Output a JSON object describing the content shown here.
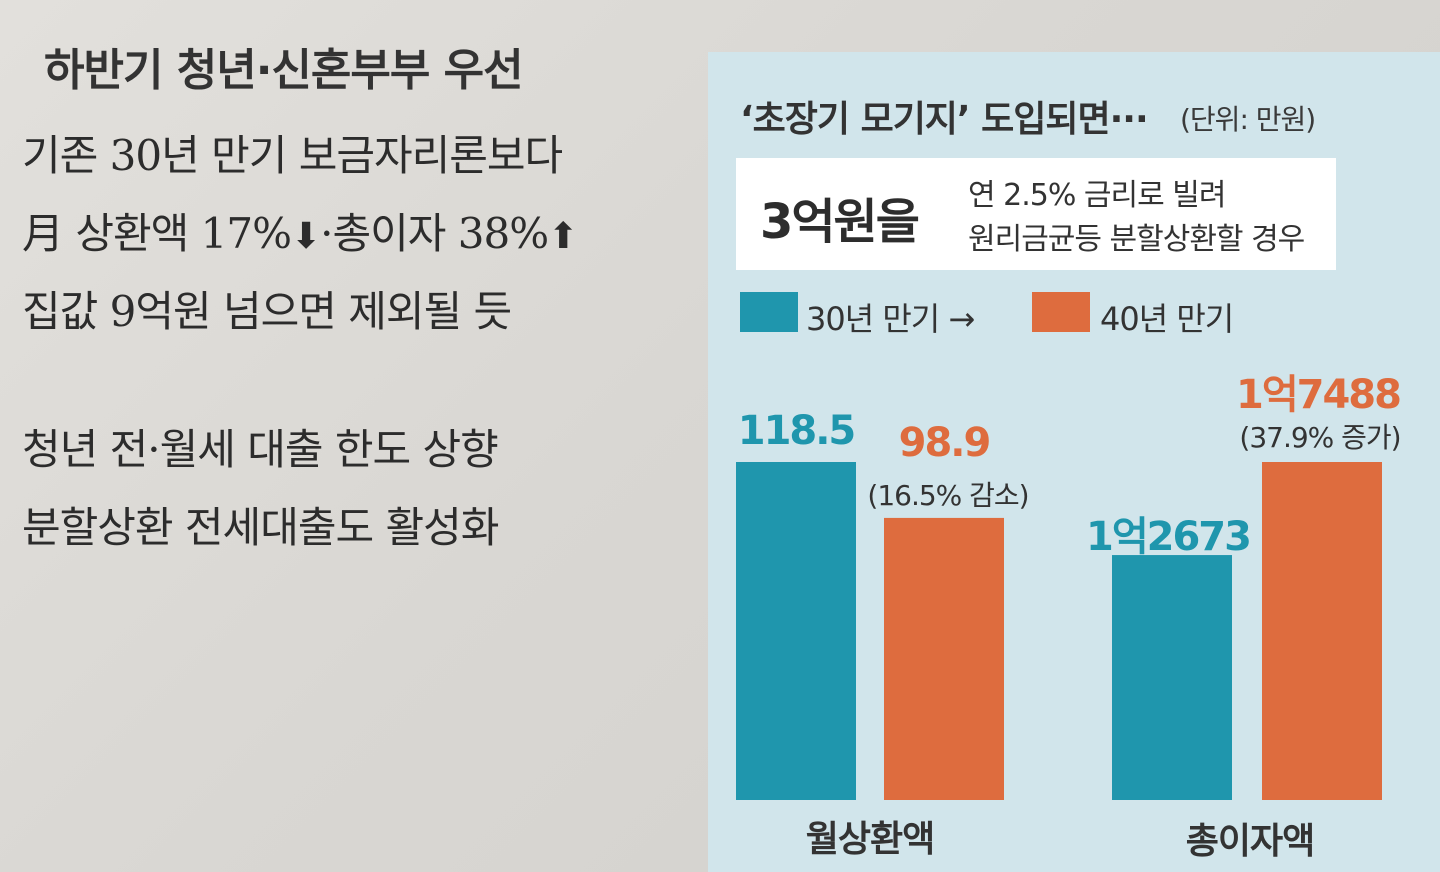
{
  "article": {
    "headline": "하반기 청년·신혼부부 우선",
    "lines": [
      "기존 30년 만기 보금자리론보다",
      "月 상환액 17%",
      "·총이자 38%",
      "집값 9억원 넘으면 제외될 듯",
      "청년 전·월세 대출 한도 상향",
      "분할상환 전세대출도 활성화"
    ],
    "arrow_down": "⬇",
    "arrow_up": "⬆"
  },
  "colors": {
    "series_30": "#1f96ad",
    "series_40": "#de6c3e",
    "panel_bg": "#d1e5eb"
  },
  "chart_data": {
    "type": "bar",
    "title": "‘초장기 모기지’ 도입되면···",
    "unit": "(단위: 만원)",
    "condition": {
      "amount": "3억원을",
      "line1": "연 2.5% 금리로 빌려",
      "line2": "원리금균등 분할상환할 경우"
    },
    "legend": [
      "30년 만기 →",
      "40년 만기"
    ],
    "groups": [
      {
        "name": "월상환액",
        "bars": [
          {
            "series": "30년 만기",
            "value": 118.5,
            "label": "118.5"
          },
          {
            "series": "40년 만기",
            "value": 98.9,
            "label": "98.9",
            "note": "(16.5% 감소)"
          }
        ]
      },
      {
        "name": "총이자액",
        "bars": [
          {
            "series": "30년 만기",
            "value": 12673,
            "label": "1억2673"
          },
          {
            "series": "40년 만기",
            "value": 17488,
            "label": "1억7488",
            "note": "(37.9% 증가)"
          }
        ]
      }
    ]
  }
}
